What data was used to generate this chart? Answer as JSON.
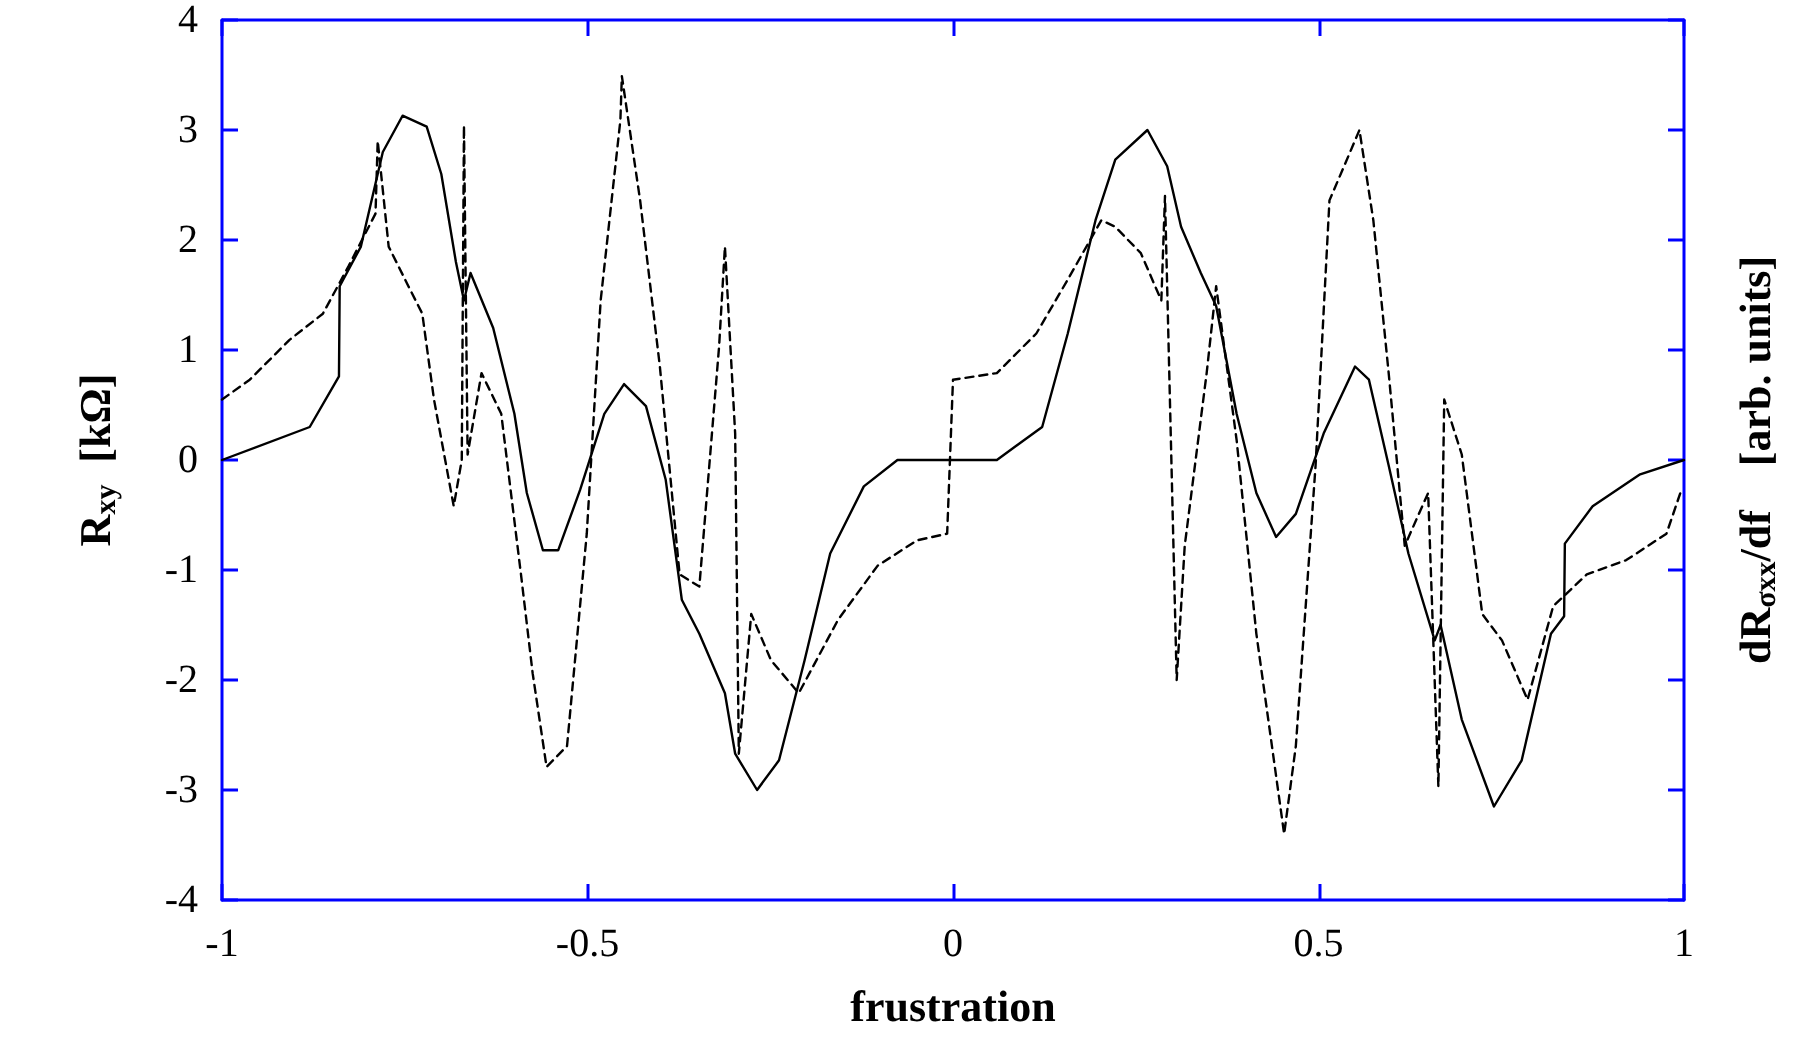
{
  "chart_data": {
    "type": "line",
    "xlabel": "frustration",
    "ylabel": "R$_{xy}$  [kΩ]",
    "y2label": "dR$_{σxx}$/df    [arb. units]",
    "xlim": [
      -1,
      1
    ],
    "xticks": [
      -1,
      -0.5,
      0,
      0.5,
      1
    ],
    "ylim": [
      -4,
      4
    ],
    "yticks": [
      -4,
      -3,
      -2,
      -1,
      0,
      1,
      2,
      3,
      4
    ],
    "grid": false,
    "marker": "none",
    "series": [
      {
        "color": "#000000",
        "line_style": "solid",
        "x": [
          -1,
          -0.88,
          -0.84,
          -0.839,
          -0.81,
          -0.78,
          -0.753,
          -0.72,
          -0.7,
          -0.68,
          -0.669,
          -0.66,
          -0.629,
          -0.6,
          -0.583,
          -0.561,
          -0.54,
          -0.51,
          -0.477,
          -0.45,
          -0.42,
          -0.393,
          -0.371,
          -0.347,
          -0.312,
          -0.298,
          -0.268,
          -0.238,
          -0.203,
          -0.168,
          -0.122,
          -0.076,
          0.06,
          0.122,
          0.157,
          0.195,
          0.222,
          0.266,
          0.293,
          0.312,
          0.339,
          0.36,
          0.388,
          0.415,
          0.442,
          0.469,
          0.507,
          0.55,
          0.569,
          0.596,
          0.623,
          0.659,
          0.667,
          0.696,
          0.74,
          0.778,
          0.818,
          0.836,
          0.837,
          0.875,
          0.94,
          1
        ],
        "values": [
          0,
          0.3,
          0.76,
          1.58,
          1.94,
          2.8,
          3.13,
          3.03,
          2.6,
          1.8,
          1.45,
          1.7,
          1.2,
          0.42,
          -0.3,
          -0.82,
          -0.82,
          -0.27,
          0.42,
          0.69,
          0.49,
          -0.18,
          -1.27,
          -1.58,
          -2.12,
          -2.67,
          -3,
          -2.73,
          -1.82,
          -0.85,
          -0.24,
          0,
          0,
          0.3,
          1.15,
          2.18,
          2.73,
          3,
          2.67,
          2.12,
          1.7,
          1.4,
          0.42,
          -0.3,
          -0.7,
          -0.49,
          0.24,
          0.85,
          0.73,
          -0.05,
          -0.85,
          -1.64,
          -1.5,
          -2.36,
          -3.15,
          -2.73,
          -1.58,
          -1.42,
          -0.76,
          -0.42,
          -0.13,
          0
        ]
      },
      {
        "color": "#000000",
        "line_style": "dashed",
        "x": [
          -1,
          -0.962,
          -0.908,
          -0.862,
          -0.827,
          -0.79,
          -0.787,
          -0.772,
          -0.745,
          -0.726,
          -0.71,
          -0.683,
          -0.672,
          -0.669,
          -0.664,
          -0.645,
          -0.618,
          -0.591,
          -0.575,
          -0.556,
          -0.528,
          -0.501,
          -0.482,
          -0.455,
          -0.453,
          -0.428,
          -0.401,
          -0.374,
          -0.347,
          -0.32,
          -0.312,
          -0.298,
          -0.293,
          -0.276,
          -0.249,
          -0.211,
          -0.157,
          -0.103,
          -0.049,
          -0.008,
          0,
          0.06,
          0.114,
          0.157,
          0.203,
          0.222,
          0.257,
          0.285,
          0.29,
          0.306,
          0.317,
          0.347,
          0.36,
          0.388,
          0.415,
          0.453,
          0.469,
          0.496,
          0.515,
          0.542,
          0.556,
          0.575,
          0.596,
          0.618,
          0.65,
          0.664,
          0.672,
          0.696,
          0.724,
          0.751,
          0.786,
          0.821,
          0.867,
          0.921,
          0.976,
          0.995
        ],
        "values": [
          0.55,
          0.73,
          1.09,
          1.33,
          1.76,
          2.24,
          2.9,
          1.94,
          1.58,
          1.33,
          0.55,
          -0.42,
          0,
          3.04,
          0.05,
          0.79,
          0.42,
          -1.04,
          -1.94,
          -2.79,
          -2.6,
          -0.67,
          1.45,
          3.09,
          3.49,
          2.36,
          0.85,
          -1.04,
          -1.15,
          1.03,
          1.94,
          0.24,
          -2.67,
          -1.4,
          -1.82,
          -2.12,
          -1.45,
          -0.96,
          -0.73,
          -0.67,
          0.73,
          0.79,
          1.15,
          1.64,
          2.18,
          2.12,
          1.88,
          1.45,
          2.4,
          -2,
          -0.78,
          0.79,
          1.58,
          0.18,
          -1.58,
          -3.4,
          -2.6,
          -0.05,
          2.36,
          2.78,
          3,
          2.18,
          0.79,
          -0.78,
          -0.3,
          -2.97,
          0.55,
          0.05,
          -1.4,
          -1.64,
          -2.18,
          -1.33,
          -1.04,
          -0.91,
          -0.67,
          -0.3
        ]
      }
    ]
  }
}
